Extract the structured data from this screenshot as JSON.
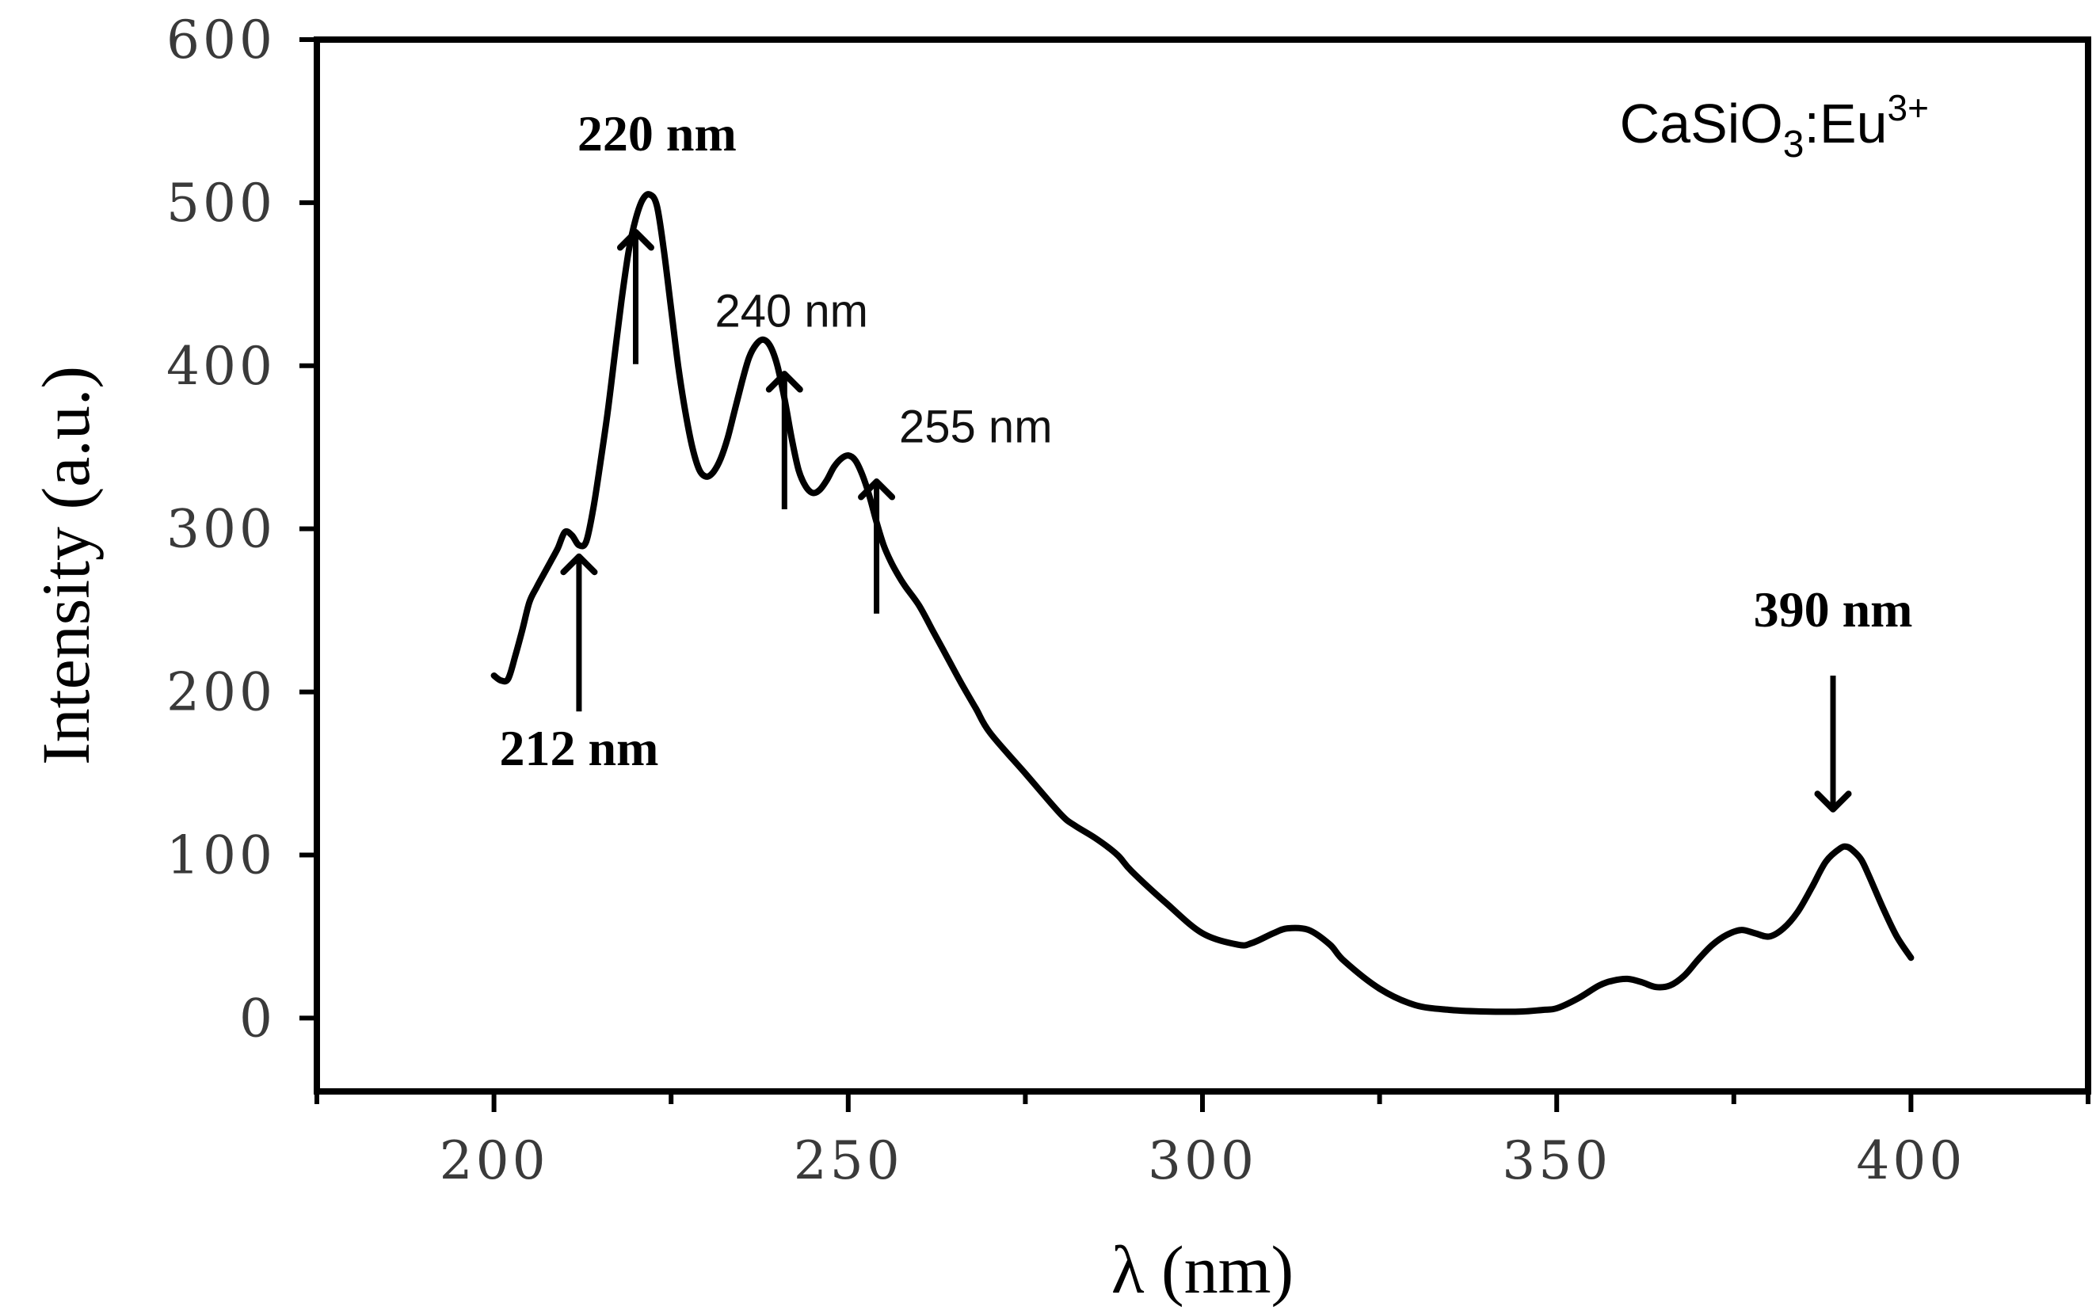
{
  "chart_data": {
    "type": "line",
    "xlabel": "λ (nm)",
    "ylabel": "Intensity (a.u.)",
    "xlim": [
      175,
      425
    ],
    "ylim": [
      -45,
      600
    ],
    "x_ticks": [
      200,
      250,
      300,
      350,
      400
    ],
    "y_ticks": [
      0,
      100,
      200,
      300,
      400,
      500,
      600
    ],
    "grid": false,
    "legend": "none",
    "sample": {
      "base": "CaSiO",
      "sub": "3",
      "mid": ":Eu",
      "sup": "3+"
    },
    "series": [
      {
        "color": "#000000",
        "x": [
          200,
          201,
          202,
          203,
          204,
          205,
          206,
          207,
          208,
          209,
          210,
          211,
          212,
          213,
          214,
          215,
          216,
          217,
          218,
          219,
          220,
          221,
          222,
          223,
          224,
          225,
          226,
          227,
          228,
          229,
          230,
          231,
          232,
          233,
          234,
          235,
          236,
          237,
          238,
          239,
          240,
          241,
          242,
          243,
          244,
          245,
          246,
          247,
          248,
          249,
          250,
          251,
          252,
          253,
          254,
          255,
          256,
          257,
          258,
          260,
          262,
          264,
          266,
          268,
          270,
          275,
          280,
          282,
          285,
          288,
          290,
          295,
          300,
          305,
          307,
          310,
          312,
          315,
          318,
          320,
          325,
          330,
          335,
          340,
          345,
          348,
          350,
          353,
          356,
          358,
          360,
          362,
          364,
          366,
          368,
          370,
          372,
          374,
          376,
          378,
          380,
          382,
          384,
          386,
          388,
          390,
          391,
          392,
          393,
          394,
          396,
          398,
          400
        ],
        "y": [
          210,
          207,
          208,
          222,
          238,
          255,
          264,
          272,
          280,
          288,
          298,
          296,
          290,
          292,
          312,
          340,
          370,
          405,
          440,
          470,
          490,
          502,
          505,
          498,
          470,
          435,
          400,
          372,
          350,
          336,
          332,
          335,
          343,
          356,
          373,
          390,
          405,
          413,
          416,
          412,
          400,
          380,
          356,
          336,
          326,
          322,
          324,
          330,
          338,
          343,
          345,
          342,
          333,
          320,
          304,
          290,
          280,
          272,
          265,
          253,
          237,
          221,
          205,
          190,
          175,
          150,
          125,
          118,
          110,
          100,
          90,
          70,
          52,
          45,
          46,
          52,
          55,
          54,
          45,
          35,
          18,
          8,
          5,
          4,
          4,
          5,
          6,
          12,
          20,
          23,
          24,
          22,
          19,
          20,
          26,
          36,
          45,
          51,
          54,
          52,
          50,
          55,
          65,
          80,
          96,
          104,
          105,
          102,
          97,
          88,
          68,
          50,
          37
        ]
      }
    ],
    "annotations": [
      {
        "text": "212 nm",
        "style": "serif-bold",
        "tip": [
          212,
          283
        ],
        "tail": [
          212,
          188
        ],
        "label_at": [
          212,
          155
        ]
      },
      {
        "text": "220 nm",
        "style": "serif-bold",
        "tip": [
          220,
          482
        ],
        "tail": [
          220,
          401
        ],
        "label_at": [
          223,
          532
        ]
      },
      {
        "text": "240 nm",
        "style": "sans",
        "tip": [
          241,
          395
        ],
        "tail": [
          241,
          312
        ],
        "label_at": [
          242,
          424
        ]
      },
      {
        "text": "255 nm",
        "style": "sans",
        "tip": [
          254,
          329
        ],
        "tail": [
          254,
          248
        ],
        "label_at": [
          268,
          353
        ]
      },
      {
        "text": "390 nm",
        "style": "serif-bold",
        "tip": [
          389,
          128
        ],
        "tail": [
          389,
          210
        ],
        "label_at": [
          389,
          240
        ]
      }
    ]
  }
}
